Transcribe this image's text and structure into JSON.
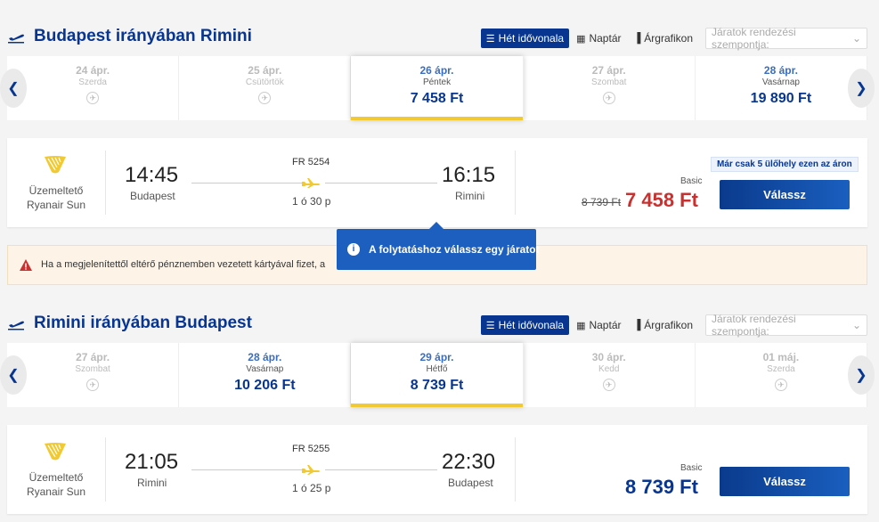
{
  "colors": {
    "brand_blue": "#073590",
    "accent_yellow": "#f1c933",
    "price_red": "#c8312f",
    "tooltip_blue": "#1d5fbf"
  },
  "outbound": {
    "title": "Budapest irányában Rimini",
    "tools": {
      "week_label": "Hét idővonala",
      "calendar_label": "Naptár",
      "chart_label": "Árgrafikon",
      "sort_placeholder": "Járatok rendezési szempontja:"
    },
    "dates": [
      {
        "date": "24 ápr.",
        "day": "Szerda",
        "price": null
      },
      {
        "date": "25 ápr.",
        "day": "Csütörtök",
        "price": null
      },
      {
        "date": "26 ápr.",
        "day": "Péntek",
        "price": "7 458 Ft"
      },
      {
        "date": "27 ápr.",
        "day": "Szombat",
        "price": null
      },
      {
        "date": "28 ápr.",
        "day": "Vasárnap",
        "price": "19 890 Ft"
      }
    ],
    "flight": {
      "operator_line1": "Üzemeltető",
      "operator_line2": "Ryanair Sun",
      "dep_time": "14:45",
      "dep_city": "Budapest",
      "flight_no": "FR 5254",
      "duration": "1 ó 30 p",
      "arr_time": "16:15",
      "arr_city": "Rimini",
      "seats_badge": "Már csak 5 ülőhely ezen az áron",
      "fare_label": "Basic",
      "old_price": "8 739 Ft",
      "price": "7 458 Ft",
      "select_label": "Válassz"
    }
  },
  "warning_text": "Ha a megjelenítettől eltérő pénznemben vezetett kártyával fizet, a",
  "tooltip_text": "A folytatáshoz válassz egy járatot",
  "inbound": {
    "title": "Rimini irányában Budapest",
    "tools": {
      "week_label": "Hét idővonala",
      "calendar_label": "Naptár",
      "chart_label": "Árgrafikon",
      "sort_placeholder": "Járatok rendezési szempontja:"
    },
    "dates": [
      {
        "date": "27 ápr.",
        "day": "Szombat",
        "price": null
      },
      {
        "date": "28 ápr.",
        "day": "Vasárnap",
        "price": "10 206 Ft"
      },
      {
        "date": "29 ápr.",
        "day": "Hétfő",
        "price": "8 739 Ft"
      },
      {
        "date": "30 ápr.",
        "day": "Kedd",
        "price": null
      },
      {
        "date": "01 máj.",
        "day": "Szerda",
        "price": null
      }
    ],
    "flight": {
      "operator_line1": "Üzemeltető",
      "operator_line2": "Ryanair Sun",
      "dep_time": "21:05",
      "dep_city": "Rimini",
      "flight_no": "FR 5255",
      "duration": "1 ó 25 p",
      "arr_time": "22:30",
      "arr_city": "Budapest",
      "fare_label": "Basic",
      "price": "8 739 Ft",
      "select_label": "Válassz"
    }
  }
}
